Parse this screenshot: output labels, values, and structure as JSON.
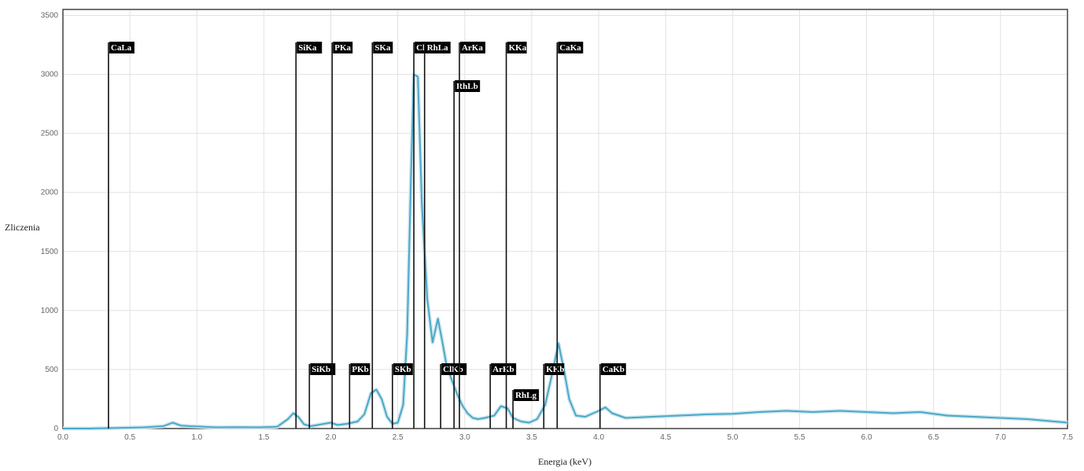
{
  "chart_data": {
    "type": "line",
    "xlabel": "Energia (keV)",
    "ylabel": "Zliczenia",
    "xlim": [
      0,
      7.5
    ],
    "ylim": [
      0,
      3550
    ],
    "x_ticks": [
      "0.0",
      "0.5",
      "1.0",
      "1.5",
      "2.0",
      "2.5",
      "3.0",
      "3.5",
      "4.0",
      "4.5",
      "5.0",
      "5.5",
      "6.0",
      "6.5",
      "7.0",
      "7.5"
    ],
    "y_ticks": [
      "0",
      "500",
      "1000",
      "1500",
      "2000",
      "2500",
      "3000",
      "3500"
    ],
    "grid": true,
    "series": [
      {
        "color": "#4aa8c8",
        "x": [
          0.0,
          0.2,
          0.4,
          0.6,
          0.75,
          0.82,
          0.88,
          0.95,
          1.05,
          1.15,
          1.3,
          1.45,
          1.6,
          1.68,
          1.72,
          1.76,
          1.8,
          1.85,
          1.95,
          2.0,
          2.05,
          2.12,
          2.2,
          2.25,
          2.3,
          2.34,
          2.38,
          2.42,
          2.46,
          2.5,
          2.54,
          2.57,
          2.6,
          2.62,
          2.65,
          2.68,
          2.72,
          2.76,
          2.8,
          2.83,
          2.86,
          2.9,
          2.94,
          2.98,
          3.02,
          3.06,
          3.1,
          3.15,
          3.22,
          3.27,
          3.32,
          3.36,
          3.42,
          3.48,
          3.54,
          3.6,
          3.65,
          3.7,
          3.74,
          3.78,
          3.83,
          3.9,
          4.0,
          4.05,
          4.1,
          4.2,
          4.4,
          4.6,
          4.8,
          5.0,
          5.2,
          5.4,
          5.6,
          5.8,
          6.0,
          6.2,
          6.4,
          6.6,
          6.8,
          7.0,
          7.2,
          7.4,
          7.5
        ],
        "y": [
          0,
          0,
          5,
          10,
          20,
          50,
          25,
          20,
          15,
          10,
          12,
          10,
          15,
          80,
          130,
          95,
          35,
          20,
          40,
          50,
          30,
          40,
          60,
          120,
          300,
          330,
          250,
          100,
          40,
          50,
          200,
          800,
          2200,
          3000,
          2980,
          1900,
          1100,
          730,
          930,
          750,
          560,
          420,
          300,
          200,
          130,
          90,
          80,
          90,
          110,
          190,
          170,
          90,
          60,
          50,
          80,
          200,
          450,
          720,
          500,
          250,
          110,
          100,
          150,
          180,
          130,
          90,
          100,
          110,
          120,
          125,
          140,
          150,
          140,
          150,
          140,
          130,
          140,
          110,
          100,
          90,
          80,
          60,
          50
        ]
      }
    ],
    "peak_markers": [
      {
        "label": "CaLa",
        "x": 0.34,
        "level": "top"
      },
      {
        "label": "SiKa",
        "x": 1.74,
        "level": "top"
      },
      {
        "label": "SiKb",
        "x": 1.84,
        "level": "low"
      },
      {
        "label": "PKa",
        "x": 2.01,
        "level": "top"
      },
      {
        "label": "PKb",
        "x": 2.14,
        "level": "low"
      },
      {
        "label": "SKa",
        "x": 2.31,
        "level": "top"
      },
      {
        "label": "SKb",
        "x": 2.46,
        "level": "low"
      },
      {
        "label": "Cl",
        "x": 2.62,
        "level": "top"
      },
      {
        "label": "RhLa",
        "x": 2.7,
        "level": "top"
      },
      {
        "label": "ClKb",
        "x": 2.82,
        "level": "low"
      },
      {
        "label": "RhLb",
        "x": 2.92,
        "level": "mid"
      },
      {
        "label": "ArKa",
        "x": 2.96,
        "level": "top"
      },
      {
        "label": "ArKb",
        "x": 3.19,
        "level": "low"
      },
      {
        "label": "RhLg",
        "x": 3.36,
        "level": "lower"
      },
      {
        "label": "KKa",
        "x": 3.31,
        "level": "top"
      },
      {
        "label": "KKb",
        "x": 3.59,
        "level": "low"
      },
      {
        "label": "CaKa",
        "x": 3.69,
        "level": "top"
      },
      {
        "label": "CaKb",
        "x": 4.01,
        "level": "low"
      }
    ]
  }
}
